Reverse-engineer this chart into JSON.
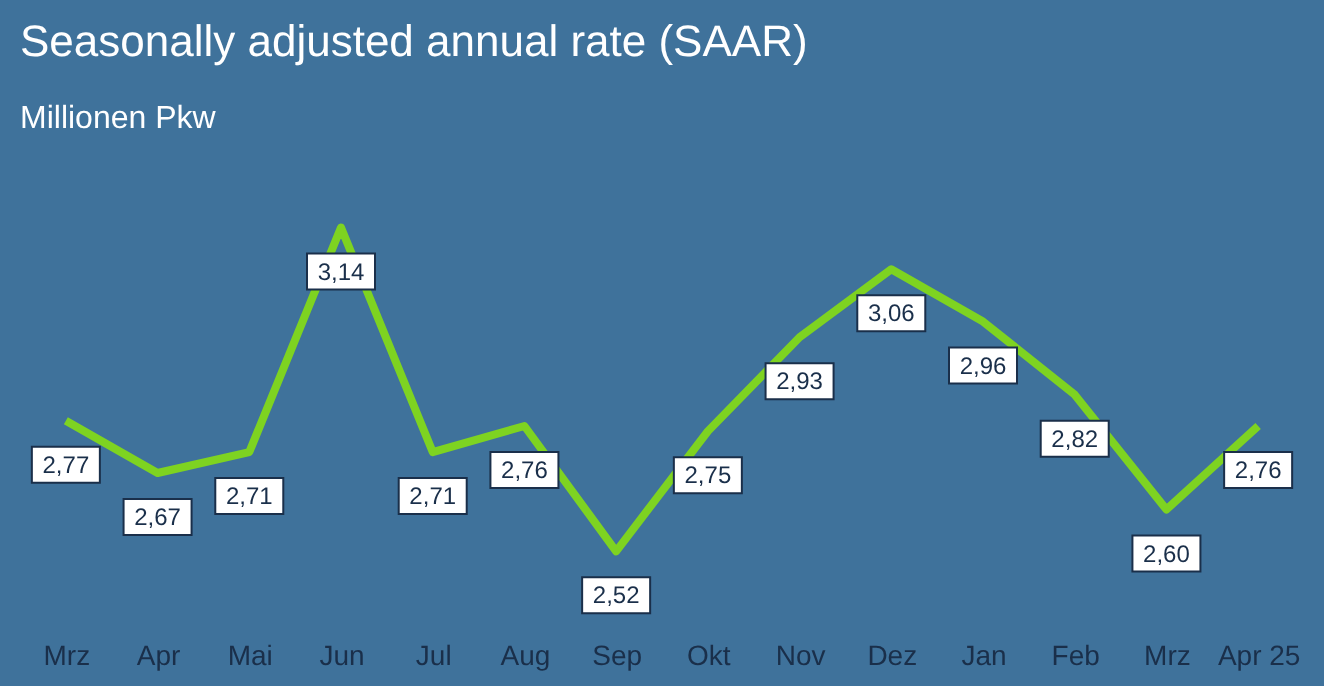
{
  "chart_data": {
    "type": "line",
    "title": "Seasonally adjusted annual rate (SAAR)",
    "subtitle": "Millionen Pkw",
    "categories": [
      "Mrz",
      "Apr",
      "Mai",
      "Jun",
      "Jul",
      "Aug",
      "Sep",
      "Okt",
      "Nov",
      "Dez",
      "Jan",
      "Feb",
      "Mrz",
      "Apr 25"
    ],
    "values": [
      2.77,
      2.67,
      2.71,
      3.14,
      2.71,
      2.76,
      2.52,
      2.75,
      2.93,
      3.06,
      2.96,
      2.82,
      2.6,
      2.76
    ],
    "value_labels": [
      "2,77",
      "2,67",
      "2,71",
      "3,14",
      "2,71",
      "2,76",
      "2,52",
      "2,75",
      "2,93",
      "3,06",
      "2,96",
      "2,82",
      "2,60",
      "2,76"
    ],
    "color": "#7ed321",
    "marker": "none",
    "grid": false
  }
}
